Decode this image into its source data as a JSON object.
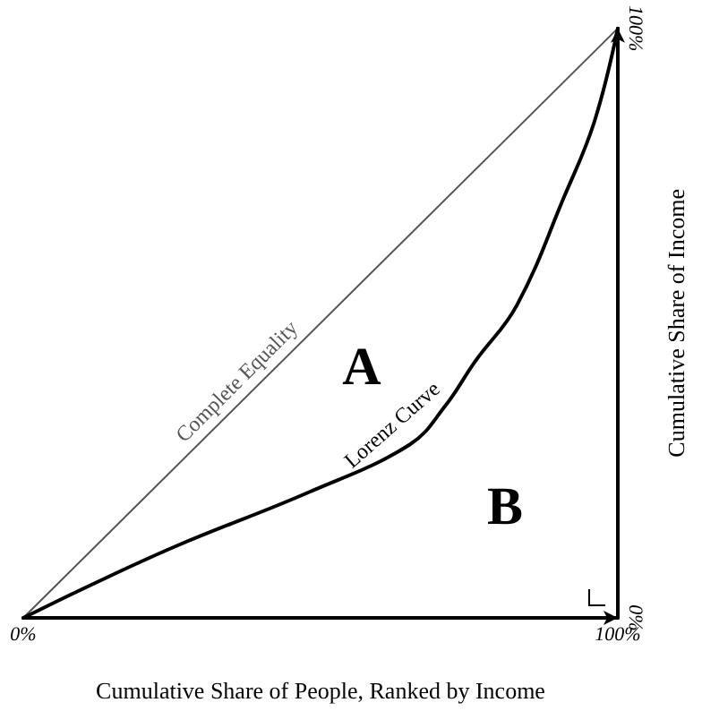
{
  "chart_data": {
    "type": "line",
    "xlabel": "Cumulative Share of People, Ranked by Income",
    "ylabel": "Cumulative Share of Income",
    "xlim": [
      0,
      100
    ],
    "ylim": [
      0,
      100
    ],
    "xticks": [
      {
        "value": 0,
        "label": "0%"
      },
      {
        "value": 100,
        "label": "100%"
      }
    ],
    "yticks": [
      {
        "value": 0,
        "label": "0%"
      },
      {
        "value": 100,
        "label": "100%"
      }
    ],
    "grid": false,
    "marker": "none",
    "series": [
      {
        "name": "Complete Equality",
        "color": "#555555",
        "x": [
          0,
          100
        ],
        "values": [
          0,
          100
        ]
      },
      {
        "name": "Lorenz Curve",
        "color": "#000000",
        "x": [
          0,
          11,
          26,
          48,
          65,
          71,
          76,
          83,
          91,
          96,
          100
        ],
        "values": [
          0,
          5.4,
          12.3,
          21.3,
          29.4,
          36,
          43.5,
          53,
          71.5,
          84,
          100
        ]
      }
    ],
    "annotations": [
      "A",
      "B"
    ]
  }
}
